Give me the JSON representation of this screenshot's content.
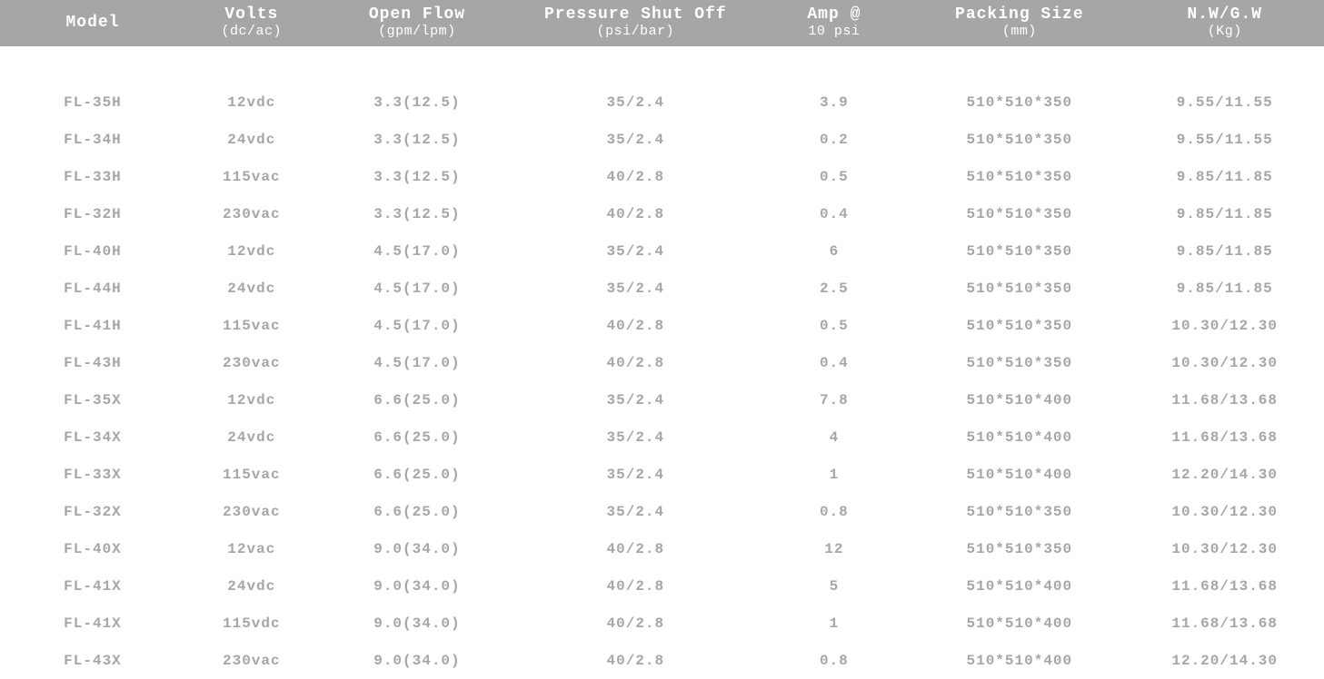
{
  "colors": {
    "header_bg": "#a6a6a6",
    "header_text": "#ffffff",
    "body_text": "#a6a6a6",
    "background": "#ffffff",
    "border": "#5f5f5f"
  },
  "typography": {
    "font_family": "Courier New, monospace",
    "header_main_fontsize": 18,
    "header_sub_fontsize": 15,
    "body_fontsize": 16,
    "header_weight": "bold",
    "body_weight": "bold",
    "letter_spacing": "1px"
  },
  "table": {
    "type": "table",
    "column_widths_pct": [
      14,
      10,
      15,
      18,
      12,
      16,
      15
    ],
    "alignment": "center",
    "columns": [
      {
        "main": "Model",
        "sub": ""
      },
      {
        "main": "Volts",
        "sub": "(dc/ac)"
      },
      {
        "main": "Open Flow",
        "sub": "(gpm/lpm)"
      },
      {
        "main": "Pressure Shut Off",
        "sub": "(psi/bar)"
      },
      {
        "main": "Amp @",
        "sub": "10 psi"
      },
      {
        "main": "Packing Size",
        "sub": "(mm)"
      },
      {
        "main": "N.W/G.W",
        "sub": "(Kg)"
      }
    ],
    "rows": [
      [
        "FL-35H",
        "12vdc",
        "3.3(12.5)",
        "35/2.4",
        "3.9",
        "510*510*350",
        "9.55/11.55"
      ],
      [
        "FL-34H",
        "24vdc",
        "3.3(12.5)",
        "35/2.4",
        "0.2",
        "510*510*350",
        "9.55/11.55"
      ],
      [
        "FL-33H",
        "115vac",
        "3.3(12.5)",
        "40/2.8",
        "0.5",
        "510*510*350",
        "9.85/11.85"
      ],
      [
        "FL-32H",
        "230vac",
        "3.3(12.5)",
        "40/2.8",
        "0.4",
        "510*510*350",
        "9.85/11.85"
      ],
      [
        "FL-40H",
        "12vdc",
        "4.5(17.0)",
        "35/2.4",
        "6",
        "510*510*350",
        "9.85/11.85"
      ],
      [
        "FL-44H",
        "24vdc",
        "4.5(17.0)",
        "35/2.4",
        "2.5",
        "510*510*350",
        "9.85/11.85"
      ],
      [
        "FL-41H",
        "115vac",
        "4.5(17.0)",
        "40/2.8",
        "0.5",
        "510*510*350",
        "10.30/12.30"
      ],
      [
        "FL-43H",
        "230vac",
        "4.5(17.0)",
        "40/2.8",
        "0.4",
        "510*510*350",
        "10.30/12.30"
      ],
      [
        "FL-35X",
        "12vdc",
        "6.6(25.0)",
        "35/2.4",
        "7.8",
        "510*510*400",
        "11.68/13.68"
      ],
      [
        "FL-34X",
        "24vdc",
        "6.6(25.0)",
        "35/2.4",
        "4",
        "510*510*400",
        "11.68/13.68"
      ],
      [
        "FL-33X",
        "115vac",
        "6.6(25.0)",
        "35/2.4",
        "1",
        "510*510*400",
        "12.20/14.30"
      ],
      [
        "FL-32X",
        "230vac",
        "6.6(25.0)",
        "35/2.4",
        "0.8",
        "510*510*350",
        "10.30/12.30"
      ],
      [
        "FL-40X",
        "12vac",
        "9.0(34.0)",
        "40/2.8",
        "12",
        "510*510*350",
        "10.30/12.30"
      ],
      [
        "FL-41X",
        "24vdc",
        "9.0(34.0)",
        "40/2.8",
        "5",
        "510*510*400",
        "11.68/13.68"
      ],
      [
        "FL-41X",
        "115vdc",
        "9.0(34.0)",
        "40/2.8",
        "1",
        "510*510*400",
        "11.68/13.68"
      ],
      [
        "FL-43X",
        "230vac",
        "9.0(34.0)",
        "40/2.8",
        "0.8",
        "510*510*400",
        "12.20/14.30"
      ]
    ]
  }
}
